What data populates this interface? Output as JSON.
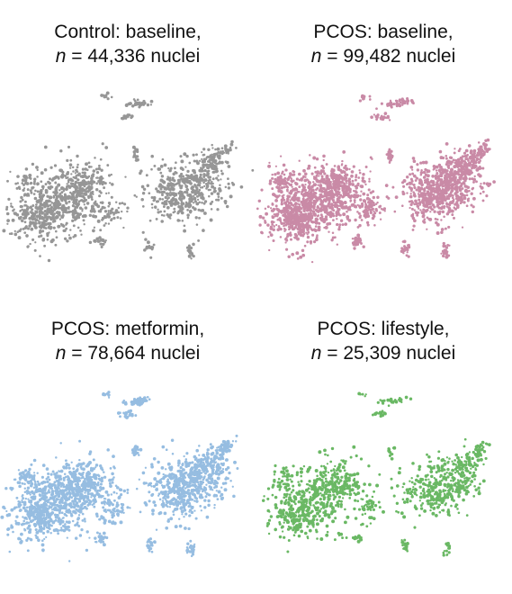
{
  "panels": [
    {
      "group": "Control: baseline,",
      "n_label": "n",
      "n_value": "= 44,336 nuclei",
      "n_nuclei": 44336,
      "color": "#969696"
    },
    {
      "group": "PCOS: baseline,",
      "n_label": "n",
      "n_value": "= 99,482 nuclei",
      "n_nuclei": 99482,
      "color": "#c98aa6"
    },
    {
      "group": "PCOS: metformin,",
      "n_label": "n",
      "n_value": "= 78,664 nuclei",
      "n_nuclei": 78664,
      "color": "#96bde1"
    },
    {
      "group": "PCOS: lifestyle,",
      "n_label": "n",
      "n_value": "= 25,309 nuclei",
      "n_nuclei": 25309,
      "color": "#6ab864"
    }
  ],
  "chart_data": {
    "type": "scatter",
    "series": [
      {
        "name": "Control: baseline",
        "n": 44336,
        "color": "#969696"
      },
      {
        "name": "PCOS: baseline",
        "n": 99482,
        "color": "#c98aa6"
      },
      {
        "name": "PCOS: metformin",
        "n": 78664,
        "color": "#96bde1"
      },
      {
        "name": "PCOS: lifestyle",
        "n": 25309,
        "color": "#6ab864"
      }
    ]
  }
}
